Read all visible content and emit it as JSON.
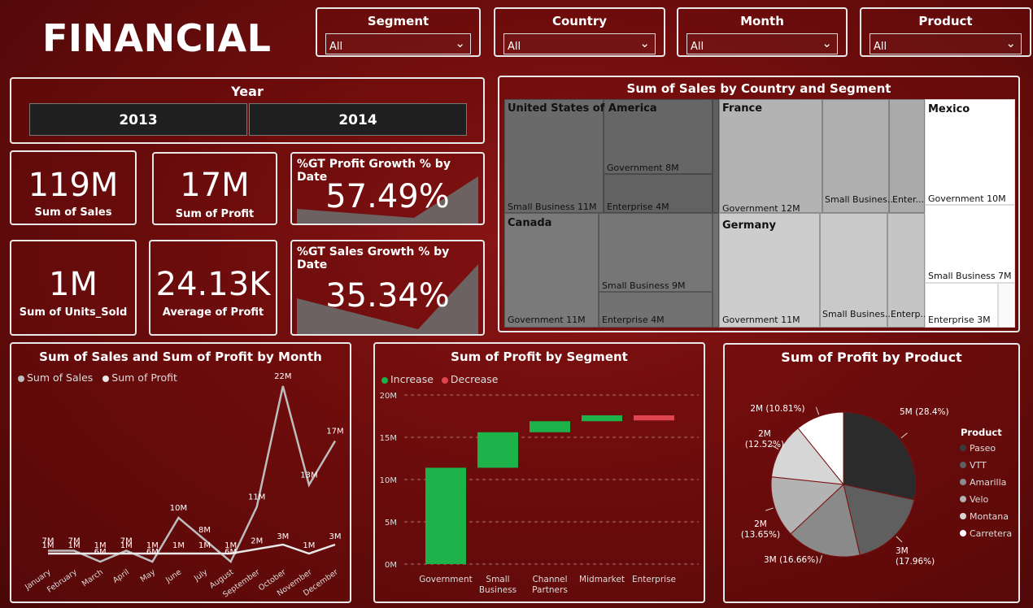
{
  "report_title": "FINANCIAL",
  "slicers": [
    {
      "title": "Segment",
      "value": "All"
    },
    {
      "title": "Country",
      "value": "All"
    },
    {
      "title": "Month",
      "value": "All"
    },
    {
      "title": "Product",
      "value": "All"
    }
  ],
  "year_slicer": {
    "title": "Year",
    "options": [
      "2013",
      "2014"
    ]
  },
  "kpis": {
    "sales": {
      "value": "119M",
      "label": "Sum of   Sales"
    },
    "profit": {
      "value": "17M",
      "label": "Sum of  Profit"
    },
    "units": {
      "value": "1M",
      "label": "Sum of  Units_Sold"
    },
    "avg_profit": {
      "value": "24.13K",
      "label": "Average of  Profit"
    }
  },
  "growth": {
    "profit": {
      "title": "%GT Profit Growth % by Date",
      "value": "57.49%"
    },
    "sales": {
      "title": "%GT Sales Growth % by Date",
      "value": "35.34%"
    }
  },
  "treemap": {
    "title": "Sum of Sales by Country and Segment",
    "countries": [
      "United States of America",
      "France",
      "Mexico",
      "Canada",
      "Germany"
    ],
    "labels": {
      "usa_gov": "Government 8M",
      "usa_sb": "Small Business 11M",
      "usa_ent": "Enterprise 4M",
      "fr_gov": "Government 12M",
      "fr_sb": "Small Busines...",
      "fr_ent": "Enter...",
      "mx_gov": "Government 10M",
      "mx_sb": "Small Business 7M",
      "mx_ent": "Enterprise 3M",
      "ca_gov": "Government 11M",
      "ca_sb": "Small Business 9M",
      "ca_ent": "Enterprise 4M",
      "de_gov": "Government 11M",
      "de_sb": "Small Busines...",
      "de_ent": "Enterp..."
    }
  },
  "line_chart": {
    "title": "Sum of Sales and Sum of Profit by Month",
    "legend": [
      "Sum of   Sales",
      "Sum of  Profit"
    ]
  },
  "waterfall": {
    "title": "Sum of Profit by Segment",
    "legend": [
      "Increase",
      "Decrease"
    ]
  },
  "pie": {
    "title": "Sum of Profit by Product",
    "legend_title": "Product"
  },
  "colors": {
    "increase": "#1db24a",
    "decrease": "#e0454f",
    "line": "#d9d9d9"
  },
  "chart_data": [
    {
      "type": "line",
      "title": "Sum of Sales and Sum of Profit by Month",
      "categories": [
        "January",
        "February",
        "March",
        "April",
        "May",
        "June",
        "July",
        "August",
        "September",
        "October",
        "November",
        "December"
      ],
      "series": [
        {
          "name": "Sum of   Sales",
          "values": [
            7,
            7,
            6,
            7,
            6,
            10,
            8,
            6,
            11,
            22,
            13,
            17
          ],
          "labels": [
            "7M",
            "7M",
            "6M",
            "7M",
            "6M",
            "10M",
            "8M",
            "6M",
            "11M",
            "22M",
            "13M",
            "17M"
          ]
        },
        {
          "name": "Sum of  Profit",
          "values": [
            1,
            1,
            1,
            1,
            1,
            1,
            1,
            1,
            2,
            3,
            1,
            3
          ],
          "labels": [
            "1M",
            "1M",
            "1M",
            "1M",
            "1M",
            "1M",
            "1M",
            "1M",
            "2M",
            "3M",
            "1M",
            "3M"
          ]
        }
      ]
    },
    {
      "type": "bar",
      "title": "Sum of Profit by Segment",
      "categories": [
        "Government",
        "Small Business",
        "Channel Partners",
        "Midmarket",
        "Enterprise"
      ],
      "values": [
        11.4,
        4.2,
        1.3,
        0.7,
        -0.6
      ],
      "ylim": [
        0,
        20
      ],
      "yticks": [
        "0M",
        "5M",
        "10M",
        "15M",
        "20M"
      ]
    },
    {
      "type": "pie",
      "title": "Sum of Profit by Product",
      "categories": [
        "Paseo",
        "VTT",
        "Amarilla",
        "Velo",
        "Montana",
        "Carretera"
      ],
      "values": [
        28.4,
        17.96,
        16.66,
        13.65,
        12.52,
        10.81
      ],
      "labels": [
        "5M (28.4%)",
        "3M (17.96%)",
        "3M (16.66%)",
        "2M (13.65%)",
        "2M (12.52%)",
        "2M (10.81%)"
      ],
      "colors": [
        "#2b2b2b",
        "#5f5f5f",
        "#8a8a8a",
        "#b3b3b3",
        "#d6d6d6",
        "#ffffff"
      ]
    }
  ]
}
